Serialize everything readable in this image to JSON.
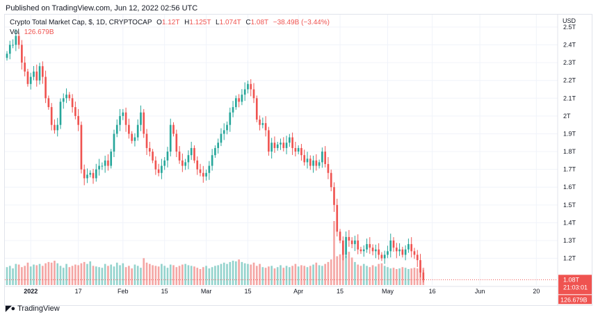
{
  "header": {
    "published": "Published on TradingView.com, Jun 12, 2022 02:56 UTC"
  },
  "legend": {
    "symbol": "Crypto Total Market Cap, $, 1D, CRYPTOCAP",
    "o_label": "O",
    "o": "1.12T",
    "h_label": "H",
    "h": "1.125T",
    "l_label": "L",
    "l": "1.074T",
    "c_label": "C",
    "c": "1.08T",
    "change": "−38.49B (−3.44%)",
    "vol_label": "Vol",
    "vol": "126.679B"
  },
  "footer": {
    "brand": "TradingView"
  },
  "colors": {
    "up": "#26a69a",
    "down": "#ef5350",
    "up_vol": "#94d3cd",
    "down_vol": "#f4a6a4",
    "grid": "#f0f3fa",
    "text": "#131722"
  },
  "badges": {
    "price": "1.08T",
    "countdown": "21:03:01",
    "volume": "126.679B"
  },
  "chart_data": {
    "type": "candlestick",
    "currency": "USD",
    "y_ticks": [
      "1.2T",
      "1.3T",
      "1.4T",
      "1.5T",
      "1.6T",
      "1.7T",
      "1.8T",
      "1.9T",
      "2T",
      "2.1T",
      "2.2T",
      "2.3T",
      "2.4T",
      "2.5T"
    ],
    "y_tick_values": [
      1.2,
      1.3,
      1.4,
      1.5,
      1.6,
      1.7,
      1.8,
      1.9,
      2.0,
      2.1,
      2.2,
      2.3,
      2.4,
      2.5
    ],
    "ylim": [
      1.05,
      2.57
    ],
    "x_ticks": [
      {
        "label": "2022",
        "date": "2022-01-01"
      },
      {
        "label": "17",
        "date": "2022-01-17"
      },
      {
        "label": "Feb",
        "date": "2022-02-01"
      },
      {
        "label": "15",
        "date": "2022-02-15"
      },
      {
        "label": "Mar",
        "date": "2022-03-01"
      },
      {
        "label": "15",
        "date": "2022-03-15"
      },
      {
        "label": "Apr",
        "date": "2022-04-01"
      },
      {
        "label": "15",
        "date": "2022-04-15"
      },
      {
        "label": "May",
        "date": "2022-05-01"
      },
      {
        "label": "16",
        "date": "2022-05-16"
      },
      {
        "label": "Jun",
        "date": "2022-06-01"
      },
      {
        "label": "20",
        "date": "2022-06-20"
      }
    ],
    "first_date": "2021-12-24",
    "last_date": "2022-06-12",
    "x_end_date": "2022-06-26",
    "closes": [
      2.35,
      2.4,
      2.4,
      2.45,
      2.4,
      2.3,
      2.25,
      2.18,
      2.22,
      2.25,
      2.2,
      2.28,
      2.22,
      2.1,
      2.05,
      1.95,
      1.92,
      1.95,
      2.08,
      2.1,
      2.12,
      2.1,
      2.05,
      2.0,
      1.95,
      1.7,
      1.65,
      1.67,
      1.68,
      1.65,
      1.7,
      1.72,
      1.72,
      1.75,
      1.72,
      1.8,
      1.9,
      1.95,
      2.0,
      2.02,
      1.95,
      1.9,
      1.86,
      1.88,
      1.95,
      2.02,
      1.9,
      1.82,
      1.8,
      1.75,
      1.7,
      1.68,
      1.72,
      1.75,
      1.8,
      1.95,
      1.9,
      1.8,
      1.75,
      1.72,
      1.74,
      1.78,
      1.82,
      1.75,
      1.7,
      1.68,
      1.66,
      1.68,
      1.72,
      1.78,
      1.82,
      1.85,
      1.9,
      1.92,
      1.95,
      2.02,
      2.05,
      2.1,
      2.08,
      2.12,
      2.15,
      2.18,
      2.15,
      2.1,
      1.98,
      1.95,
      1.96,
      1.92,
      1.8,
      1.85,
      1.82,
      1.84,
      1.85,
      1.82,
      1.85,
      1.88,
      1.82,
      1.8,
      1.82,
      1.78,
      1.74,
      1.76,
      1.72,
      1.75,
      1.72,
      1.74,
      1.8,
      1.73,
      1.68,
      1.6,
      1.5,
      1.35,
      1.3,
      1.22,
      1.32,
      1.3,
      1.28,
      1.3,
      1.25,
      1.24,
      1.25,
      1.28,
      1.26,
      1.24,
      1.25,
      1.22,
      1.2,
      1.22,
      1.24,
      1.3,
      1.26,
      1.24,
      1.25,
      1.22,
      1.25,
      1.28,
      1.24,
      1.22,
      1.19,
      1.12,
      1.08
    ],
    "volumes": [
      0.28,
      0.3,
      0.26,
      0.33,
      0.32,
      0.28,
      0.3,
      0.35,
      0.29,
      0.32,
      0.31,
      0.33,
      0.3,
      0.34,
      0.36,
      0.35,
      0.38,
      0.34,
      0.3,
      0.27,
      0.33,
      0.28,
      0.3,
      0.32,
      0.31,
      0.34,
      0.36,
      0.33,
      0.37,
      0.3,
      0.29,
      0.28,
      0.27,
      0.33,
      0.3,
      0.32,
      0.29,
      0.35,
      0.31,
      0.34,
      0.28,
      0.3,
      0.26,
      0.32,
      0.3,
      0.27,
      0.42,
      0.35,
      0.33,
      0.31,
      0.3,
      0.29,
      0.33,
      0.3,
      0.27,
      0.32,
      0.31,
      0.28,
      0.3,
      0.32,
      0.33,
      0.31,
      0.3,
      0.29,
      0.27,
      0.25,
      0.28,
      0.3,
      0.26,
      0.28,
      0.3,
      0.31,
      0.33,
      0.35,
      0.33,
      0.36,
      0.38,
      0.37,
      0.4,
      0.36,
      0.34,
      0.33,
      0.32,
      0.35,
      0.3,
      0.33,
      0.28,
      0.27,
      0.29,
      0.3,
      0.26,
      0.28,
      0.31,
      0.27,
      0.3,
      0.28,
      0.3,
      0.33,
      0.29,
      0.31,
      0.3,
      0.28,
      0.3,
      0.32,
      0.35,
      0.31,
      0.3,
      0.33,
      0.36,
      0.4,
      1.0,
      0.45,
      0.48,
      0.62,
      0.46,
      0.52,
      0.43,
      0.36,
      0.32,
      0.3,
      0.33,
      0.3,
      0.28,
      0.31,
      0.29,
      0.33,
      0.34,
      0.3,
      0.28,
      0.26,
      0.27,
      0.25,
      0.26,
      0.28,
      0.27,
      0.25,
      0.26,
      0.27,
      0.26,
      0.26,
      0.27
    ],
    "last_close": 1.08
  }
}
